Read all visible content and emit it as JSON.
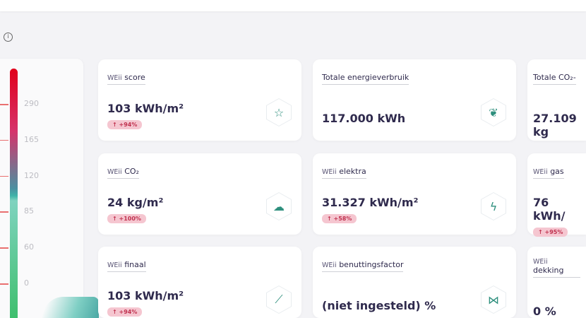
{
  "gauge": {
    "ticks": [
      "290",
      "165",
      "120",
      "85",
      "60",
      "0"
    ],
    "colors": {
      "top": "#e0001a",
      "mid": "#d6336b",
      "bottom": "#3fbf6e"
    }
  },
  "cards": [
    {
      "prefix": "WEii",
      "label": "score",
      "value": "103 kWh/m²",
      "badge": "↑  +94%",
      "icon": "star-icon"
    },
    {
      "prefix": "",
      "label": "Totale energieverbruik",
      "value": "117.000 kWh",
      "badge": "",
      "icon": "leaf-icon"
    },
    {
      "prefix": "",
      "label": "Totale CO₂-",
      "value": "27.109 kg",
      "badge": "",
      "icon": ""
    },
    {
      "prefix": "WEii",
      "label": "CO₂",
      "value": "24 kg/m²",
      "badge": "↑  +100%",
      "icon": "cloud-icon"
    },
    {
      "prefix": "WEii",
      "label": "elektra",
      "value": "31.327 kWh/m²",
      "badge": "↑  +58%",
      "icon": "lightning-icon"
    },
    {
      "prefix": "WEii",
      "label": "gas",
      "value": "76 kWh/",
      "badge": "↑  +95%",
      "icon": ""
    },
    {
      "prefix": "WEii",
      "label": "finaal",
      "value": "103 kWh/m²",
      "badge": "↑  +94%",
      "icon": "chart-icon"
    },
    {
      "prefix": "WEii",
      "label": "benuttingsfactor",
      "value": "(niet ingesteld) %",
      "badge": "",
      "icon": "network-icon"
    },
    {
      "prefix": "WEii",
      "label": "dekking",
      "value": "0 %",
      "badge": "",
      "icon": ""
    }
  ],
  "badge_color": "#f5c6d0",
  "accent": "#2e8f7d"
}
